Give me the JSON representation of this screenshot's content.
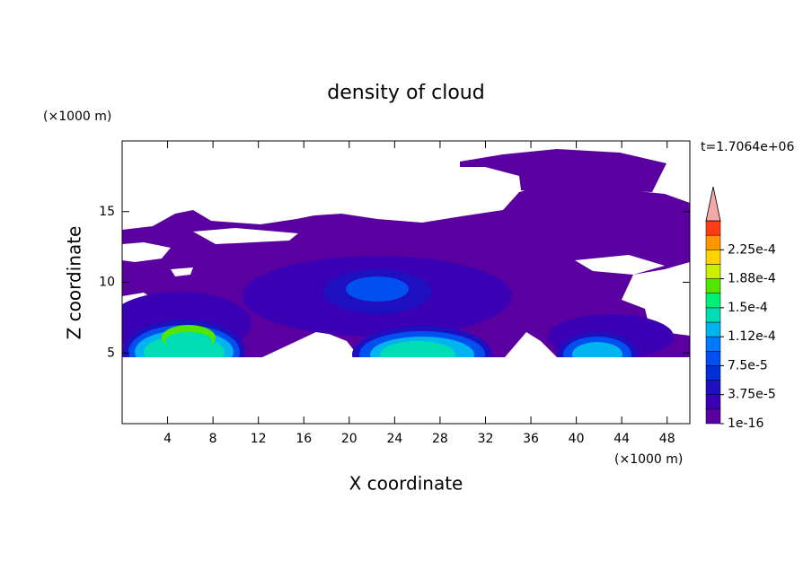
{
  "chart_data": {
    "type": "contour",
    "title": "density of cloud",
    "x_label": "X coordinate",
    "y_label": "Z coordinate",
    "x_unit": "(×1000 m)",
    "y_unit": "(×1000 m)",
    "time_label": "t=1.7064e+06",
    "xlim": [
      0,
      50
    ],
    "ylim": [
      0,
      20
    ],
    "xticks": [
      4,
      8,
      12,
      16,
      20,
      24,
      28,
      32,
      36,
      40,
      44,
      48
    ],
    "yticks": [
      5,
      10,
      15
    ],
    "colorbar": {
      "levels": [
        1e-16,
        1.875e-05,
        3.75e-05,
        5.625e-05,
        7.5e-05,
        9.375e-05,
        0.0001125,
        0.00013125,
        0.00015,
        0.00016875,
        0.0001875,
        0.00020625,
        0.000225,
        0.00024375
      ],
      "colors": [
        "#5a00a0",
        "#3c00b4",
        "#1e10c0",
        "#0030d8",
        "#0050f0",
        "#0078ff",
        "#00b4f0",
        "#00dcb4",
        "#00f078",
        "#50e600",
        "#c8f000",
        "#ffd200",
        "#ff9600",
        "#ff3c14"
      ],
      "extend_color": "#f4a8a8",
      "ticks": [
        1e-16,
        {
          "value": 3.75e-05,
          "label": "3.75e-5"
        },
        {
          "value": 7.5e-05,
          "label": "7.5e-5"
        },
        {
          "value": 0.0001125,
          "label": "1.12e-4"
        },
        {
          "value": 0.00015,
          "label": "1.5e-4"
        },
        {
          "value": 0.0001875,
          "label": "1.88e-4"
        },
        {
          "value": 0.000225,
          "label": "2.25e-4"
        }
      ]
    }
  }
}
